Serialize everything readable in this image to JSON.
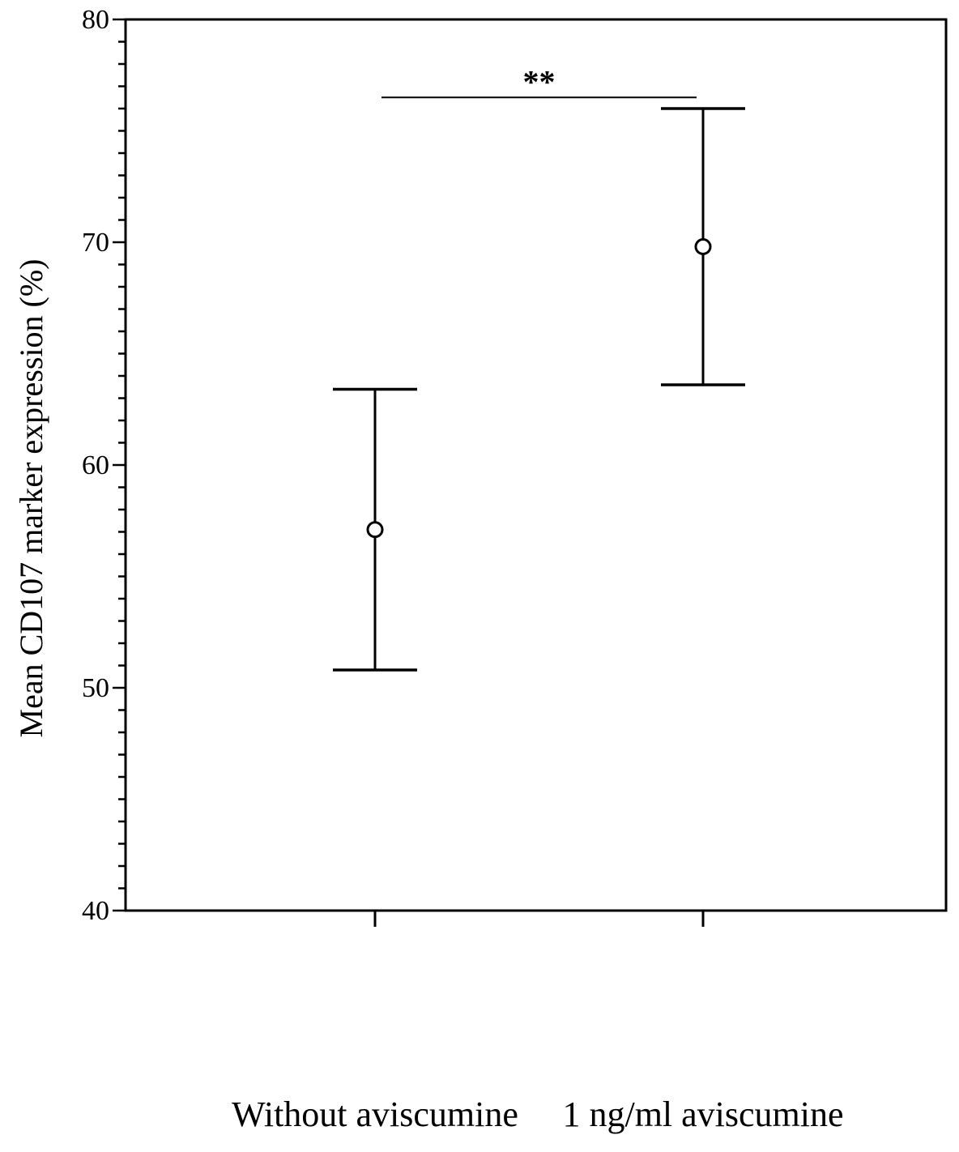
{
  "chart_data": {
    "type": "scatter",
    "title": "",
    "xlabel": "",
    "ylabel": "Mean CD107 marker expression (%)",
    "ylim": [
      40,
      80
    ],
    "y_major_ticks": [
      40,
      50,
      60,
      70,
      80
    ],
    "y_minor_step": 1,
    "grid": false,
    "legend": "none",
    "categories": [
      "Without aviscumine",
      "1 ng/ml aviscumine"
    ],
    "series": [
      {
        "values": [
          57.1,
          69.8
        ],
        "error_low": [
          50.8,
          63.6
        ],
        "error_high": [
          63.4,
          76.0
        ],
        "marker": "open-circle"
      }
    ],
    "annotations": [
      {
        "text": "**",
        "from_category": 0,
        "to_category": 1,
        "y": 76.5
      }
    ],
    "colors": {
      "mark": "#000000",
      "axis": "#000000",
      "background": "#ffffff"
    }
  }
}
